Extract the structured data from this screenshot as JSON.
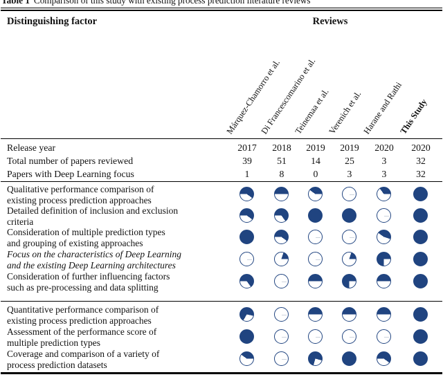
{
  "title": {
    "label": "Table 1",
    "text": "Comparison of this study with existing process prediction literature reviews"
  },
  "header": {
    "factor_label": "Distinguishing factor",
    "reviews_label": "Reviews"
  },
  "reviewers": [
    "Márquez-Chamorro et al.",
    "Di Francescomarino et al.",
    "Teinemaa et al.",
    "Verenich et al.",
    "Harane and Rathi",
    "This Study"
  ],
  "numeric_rows": [
    {
      "label": "Release year",
      "values": [
        "2017",
        "2018",
        "2019",
        "2019",
        "2020",
        "2020"
      ]
    },
    {
      "label": "Total number of papers reviewed",
      "values": [
        "39",
        "51",
        "14",
        "25",
        "3",
        "32"
      ]
    },
    {
      "label": "Papers with Deep Learning focus",
      "values": [
        "1",
        "8",
        "0",
        "3",
        "3",
        "32"
      ]
    }
  ],
  "sections": [
    {
      "rows": [
        {
          "label1": "Qualitative performance comparison of",
          "label2": "existing process prediction approaches",
          "balls": [
            {
              "f": 0.6,
              "start": 270
            },
            {
              "f": 0.5,
              "start": 270
            },
            {
              "f": 0.4,
              "start": 306
            },
            {
              "f": 0,
              "start": 0
            },
            {
              "f": 0.35,
              "start": 324
            },
            {
              "f": 1,
              "start": 0
            }
          ]
        },
        {
          "label1": "Detailed definition of inclusion and exclusion",
          "label2": "criteria",
          "balls": [
            {
              "f": 0.6,
              "start": 270
            },
            {
              "f": 0.65,
              "start": 270
            },
            {
              "f": 1,
              "start": 0
            },
            {
              "f": 1,
              "start": 0
            },
            {
              "f": 0,
              "start": 0
            },
            {
              "f": 1,
              "start": 0
            }
          ]
        },
        {
          "label1": "Consideration of multiple prediction types",
          "label2": "and grouping of existing approaches",
          "balls": [
            {
              "f": 1,
              "start": 0
            },
            {
              "f": 0.6,
              "start": 270
            },
            {
              "f": 0,
              "start": 0
            },
            {
              "f": 0,
              "start": 0
            },
            {
              "f": 0.45,
              "start": 306
            },
            {
              "f": 1,
              "start": 0
            }
          ]
        },
        {
          "label1": "Focus on the characteristics of Deep Learning",
          "label2": "and the existing Deep Learning architectures",
          "italic": true,
          "balls": [
            {
              "f": 0,
              "start": 0
            },
            {
              "f": 0.2,
              "start": 18
            },
            {
              "f": 0,
              "start": 0
            },
            {
              "f": 0.2,
              "start": 18
            },
            {
              "f": 0.75,
              "start": 180
            },
            {
              "f": 1,
              "start": 0
            }
          ]
        },
        {
          "label1": "Consideration of further influencing factors",
          "label2": "such as pre-processing and data splitting",
          "balls": [
            {
              "f": 0.65,
              "start": 270
            },
            {
              "f": 0,
              "start": 0
            },
            {
              "f": 0.5,
              "start": 270
            },
            {
              "f": 0.75,
              "start": 180
            },
            {
              "f": 0.5,
              "start": 270
            },
            {
              "f": 1,
              "start": 0
            }
          ]
        }
      ]
    },
    {
      "rows": [
        {
          "label1": "Quantitative performance comparison of",
          "label2": "existing process prediction approaches",
          "balls": [
            {
              "f": 0.7,
              "start": 210
            },
            {
              "f": 0,
              "start": 0
            },
            {
              "f": 0.5,
              "start": 270
            },
            {
              "f": 0.5,
              "start": 270
            },
            {
              "f": 0.5,
              "start": 270
            },
            {
              "f": 1,
              "start": 0
            }
          ]
        },
        {
          "label1": "Assessment of the performance score of",
          "label2": "multiple prediction types",
          "balls": [
            {
              "f": 1,
              "start": 0
            },
            {
              "f": 0,
              "start": 0
            },
            {
              "f": 0,
              "start": 0
            },
            {
              "f": 0,
              "start": 0
            },
            {
              "f": 0,
              "start": 0
            },
            {
              "f": 1,
              "start": 0
            }
          ]
        },
        {
          "label1": "Coverage and comparison of a variety of",
          "label2": "process prediction datasets",
          "balls": [
            {
              "f": 0.4,
              "start": 306
            },
            {
              "f": 0,
              "start": 0
            },
            {
              "f": 0.75,
              "start": 195
            },
            {
              "f": 1,
              "start": 0
            },
            {
              "f": 0.6,
              "start": 270
            },
            {
              "f": 1,
              "start": 0
            }
          ]
        }
      ]
    }
  ],
  "colors": {
    "ball": "#204480",
    "tick": "#ccd3dd"
  }
}
